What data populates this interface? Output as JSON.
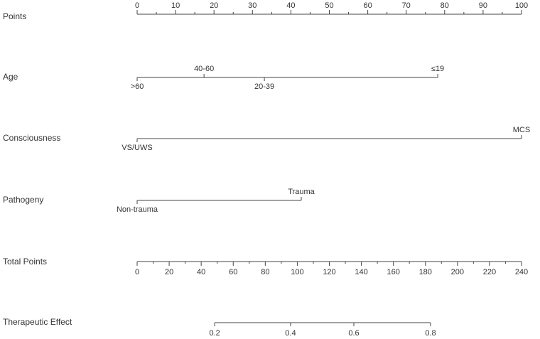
{
  "chart_data": {
    "type": "nomogram",
    "points_axis": {
      "label": "Points",
      "xlim": [
        0,
        100
      ],
      "xticks": [
        0,
        10,
        20,
        30,
        40,
        50,
        60,
        70,
        80,
        90,
        100
      ],
      "minor_ticks": [
        5,
        15,
        25,
        35,
        45,
        55,
        65,
        75,
        85,
        95
      ]
    },
    "variables": [
      {
        "name": "Age",
        "levels": [
          ">60",
          "40-60",
          "20-39",
          "≤19"
        ],
        "points": [
          0,
          17.4,
          33.1,
          78.2
        ]
      },
      {
        "name": "Consciousness",
        "levels": [
          "VS/UWS",
          "MCS"
        ],
        "points": [
          0,
          100
        ]
      },
      {
        "name": "Pathogeny",
        "levels": [
          "Non-trauma",
          "Trauma"
        ],
        "points": [
          0,
          42.7
        ]
      }
    ],
    "total_points_axis": {
      "label": "Total Points",
      "xlim": [
        0,
        240
      ],
      "xticks": [
        0,
        20,
        40,
        60,
        80,
        100,
        120,
        140,
        160,
        180,
        200,
        220,
        240
      ],
      "minor_ticks": [
        10,
        30,
        50,
        70,
        90,
        110,
        130,
        150,
        170,
        190,
        210,
        230
      ]
    },
    "outcome": {
      "name": "Therapeutic Effect",
      "levels": [
        "0.2",
        "0.4",
        "0.6",
        "0.8"
      ],
      "total_points": [
        48.4,
        95.8,
        135.3,
        183.2
      ]
    }
  }
}
